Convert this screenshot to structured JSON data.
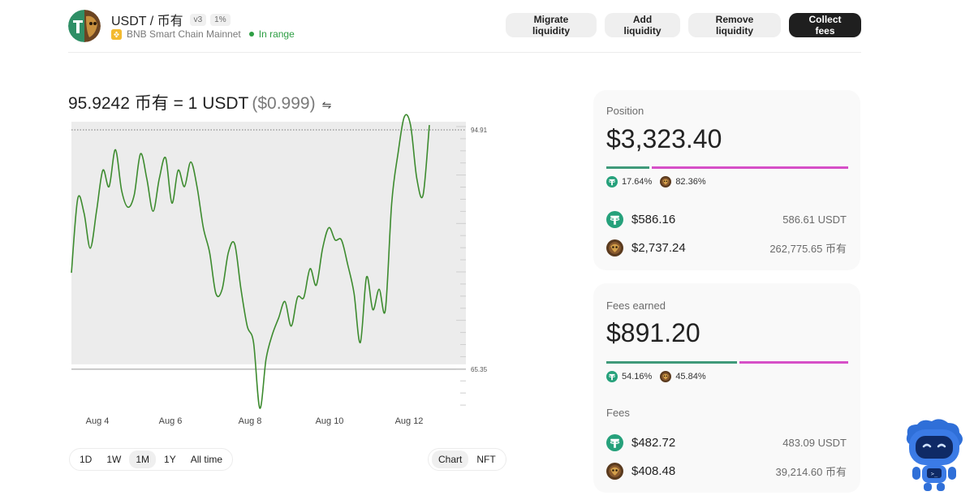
{
  "header": {
    "pair": "USDT / 币有",
    "version_tag": "v3",
    "fee_tag": "1%",
    "chain": "BNB Smart Chain Mainnet",
    "status": "In range",
    "buttons": {
      "migrate": "Migrate liquidity",
      "add": "Add liquidity",
      "remove": "Remove liquidity",
      "collect": "Collect fees"
    }
  },
  "price": {
    "rate": "95.9242 币有 = 1 USDT",
    "usd": "($0.999)",
    "swap_symbol": "⇋"
  },
  "chart_data": {
    "type": "line",
    "x_ticks": [
      "Aug 4",
      "Aug 6",
      "Aug 8",
      "Aug 10",
      "Aug 12"
    ],
    "upper_label": "94.91",
    "lower_label": "65.35",
    "upper": 94.91,
    "lower": 65.35,
    "ylim": [
      59.5,
      95.5
    ],
    "y": [
      76.5,
      85.5,
      83.8,
      79.5,
      84,
      89,
      87,
      91.5,
      86.5,
      84.5,
      86,
      91,
      88,
      84,
      88,
      90.5,
      85,
      89,
      87,
      90,
      87,
      82,
      79,
      74,
      74.5,
      79,
      80,
      74.5,
      70,
      68,
      60,
      66,
      69,
      71,
      73,
      70,
      73.5,
      73.5,
      77,
      75,
      79.5,
      82,
      80.5,
      80.5,
      77.5,
      74,
      68,
      76,
      72,
      74.5,
      72,
      85,
      91,
      95.5,
      94.5,
      88,
      86,
      94.5
    ],
    "line_color": "#3d8b2f"
  },
  "range_buttons": [
    "1D",
    "1W",
    "1M",
    "1Y",
    "All time"
  ],
  "range_active": "1M",
  "view_buttons": [
    "Chart",
    "NFT"
  ],
  "view_active": "Chart",
  "position": {
    "label": "Position",
    "value": "$3,323.40",
    "share_a": 17.64,
    "share_b": 82.36,
    "pct_a": "17.64%",
    "pct_b": "82.36%",
    "token_a_usd": "$586.16",
    "token_a_amount": "586.61 USDT",
    "token_b_usd": "$2,737.24",
    "token_b_amount": "262,775.65 币有"
  },
  "fees": {
    "label": "Fees earned",
    "value": "$891.20",
    "share_a": 54.16,
    "share_b": 45.84,
    "pct_a": "54.16%",
    "pct_b": "45.84%",
    "section": "Fees",
    "token_a_usd": "$482.72",
    "token_a_amount": "483.09 USDT",
    "token_b_usd": "$408.48",
    "token_b_amount": "39,214.60 币有"
  },
  "colors": {
    "token_a": "#3f9a7a",
    "token_b": "#d64fc7",
    "in_range": "#2e9e44"
  }
}
